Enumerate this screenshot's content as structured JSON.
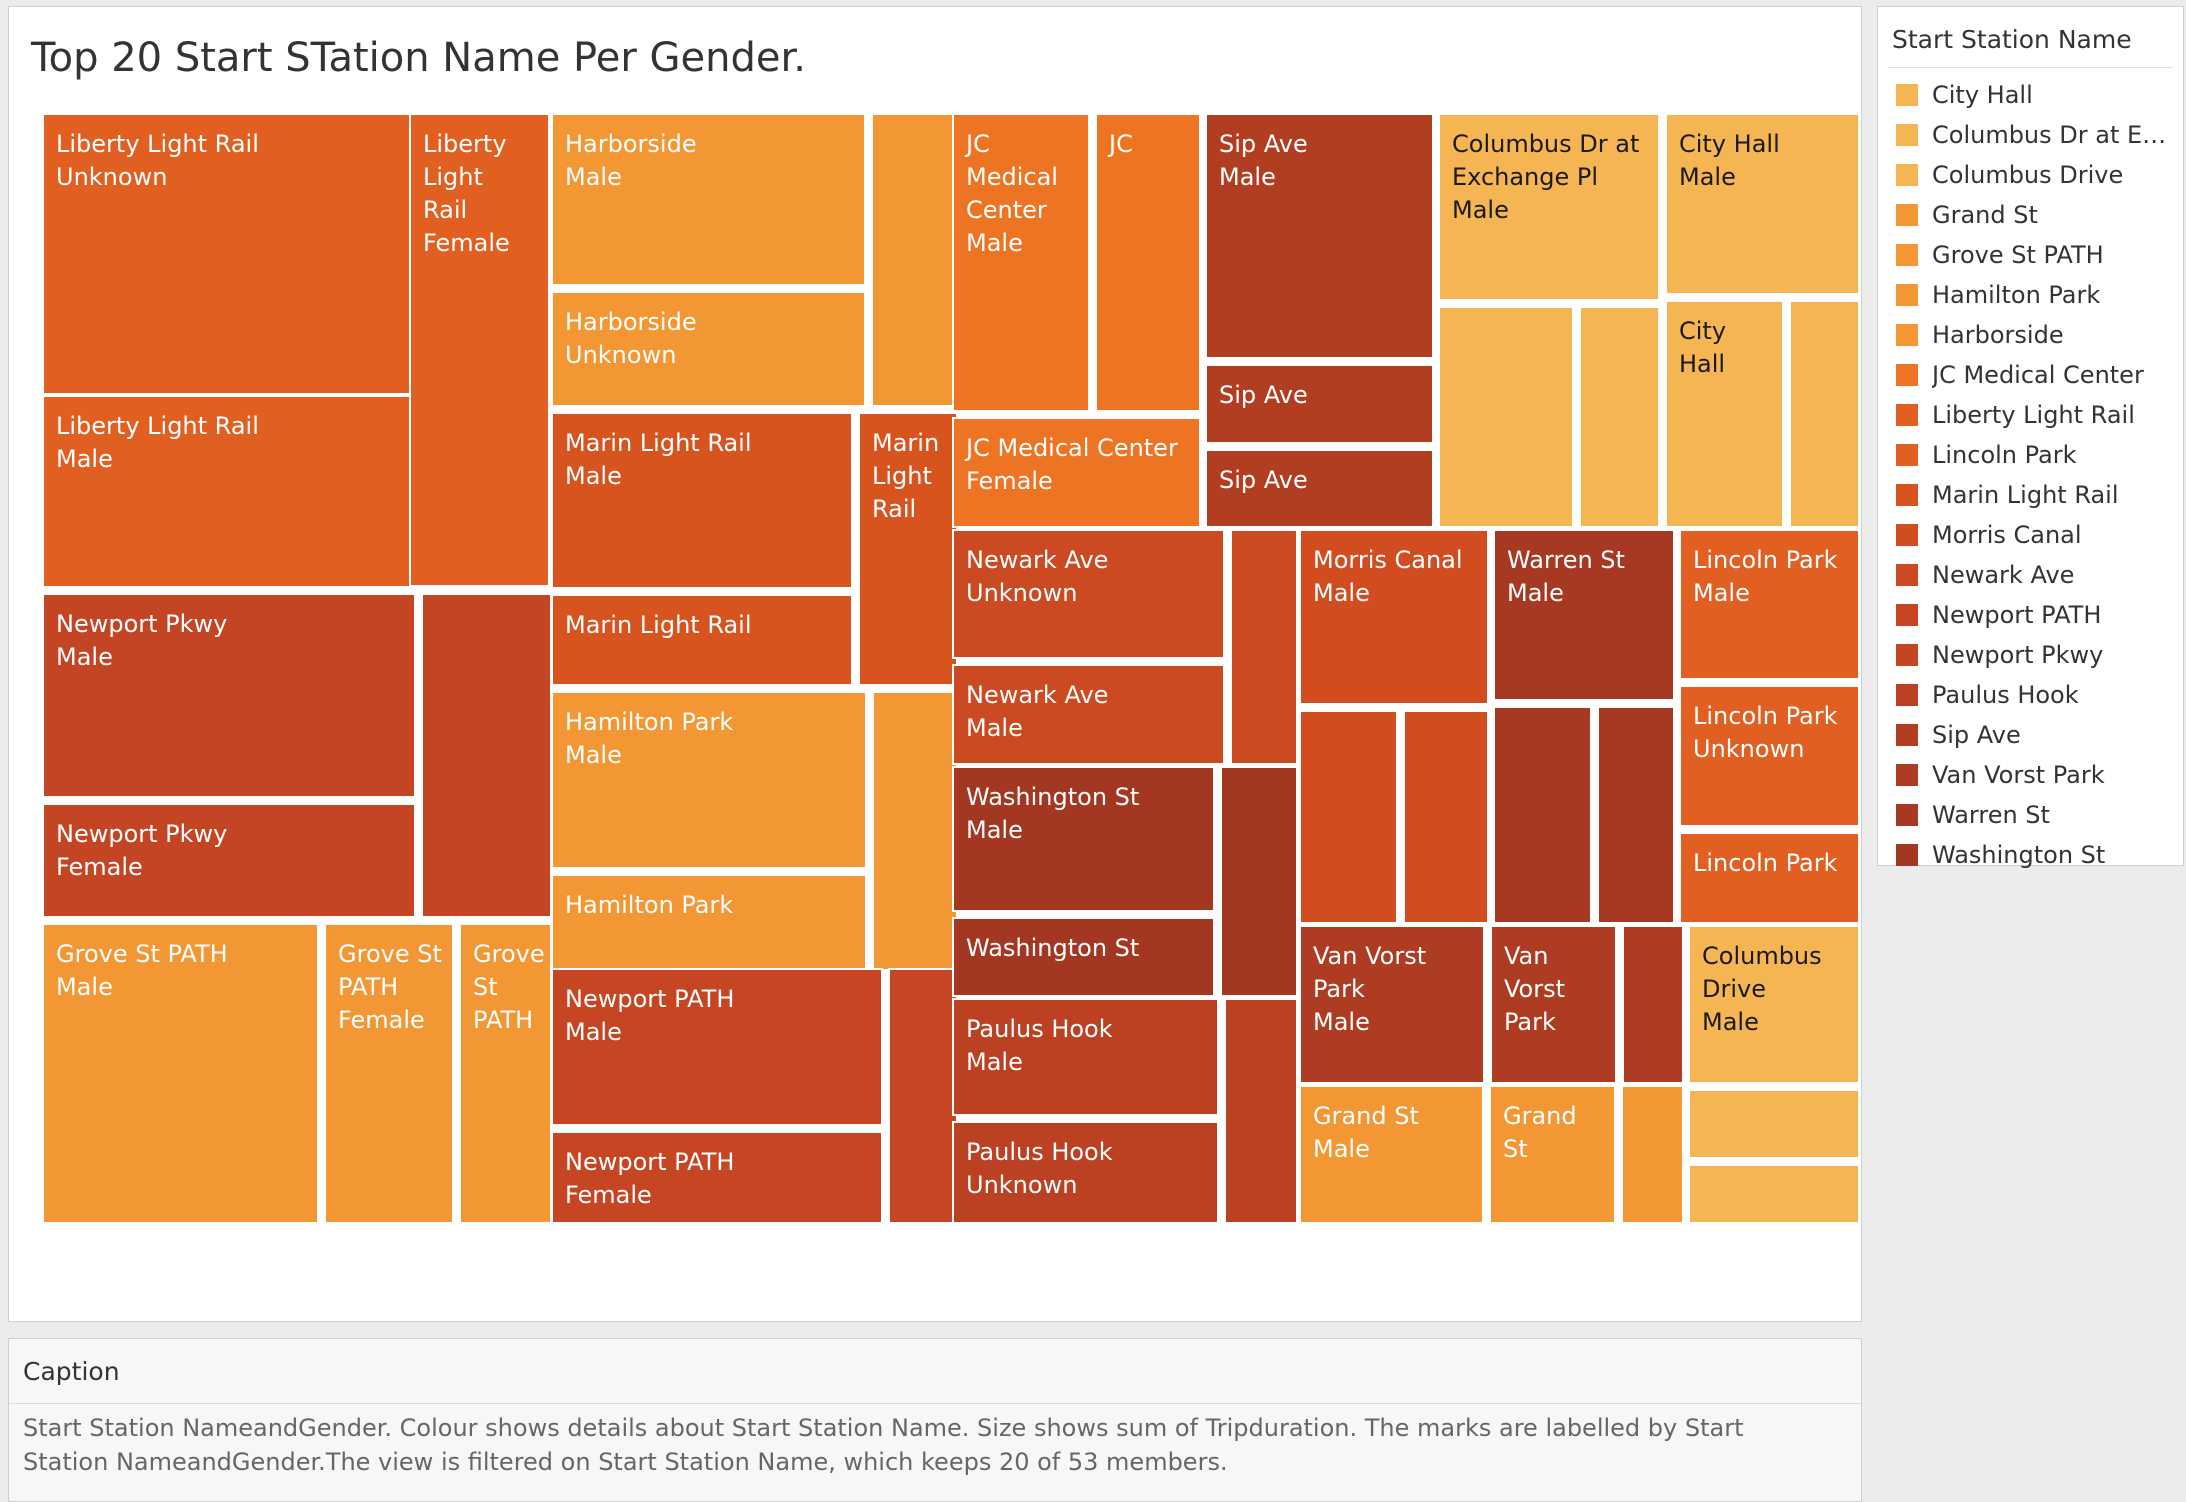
{
  "title": "Top 20 Start STation Name Per Gender.",
  "legend": {
    "title": "Start Station Name",
    "items": [
      {
        "label": "City Hall",
        "color": "#f6b553"
      },
      {
        "label": "Columbus Dr at Exch..",
        "color": "#f6b553"
      },
      {
        "label": "Columbus Drive",
        "color": "#f6b553"
      },
      {
        "label": "Grand St",
        "color": "#f39634"
      },
      {
        "label": "Grove St PATH",
        "color": "#f39634"
      },
      {
        "label": "Hamilton Park",
        "color": "#f39634"
      },
      {
        "label": "Harborside",
        "color": "#f39634"
      },
      {
        "label": "JC Medical Center",
        "color": "#ed7422"
      },
      {
        "label": "Liberty Light Rail",
        "color": "#e15f20"
      },
      {
        "label": "Lincoln Park",
        "color": "#e15f20"
      },
      {
        "label": "Marin Light Rail",
        "color": "#d7541f"
      },
      {
        "label": "Morris Canal",
        "color": "#d14d20"
      },
      {
        "label": "Newark Ave",
        "color": "#cb4a21"
      },
      {
        "label": "Newport PATH",
        "color": "#c64522"
      },
      {
        "label": "Newport Pkwy",
        "color": "#c44523"
      },
      {
        "label": "Paulus Hook",
        "color": "#bb4122"
      },
      {
        "label": "Sip Ave",
        "color": "#b23e22"
      },
      {
        "label": "Van Vorst Park",
        "color": "#ad3c22"
      },
      {
        "label": "Warren St",
        "color": "#a73922"
      },
      {
        "label": "Washington St",
        "color": "#a33722"
      }
    ]
  },
  "caption": {
    "heading": "Caption",
    "text": "Start Station NameandGender. Colour shows details about Start Station Name. Size shows sum of Tripduration. The marks are labelled by Start Station NameandGender.The view is filtered on Start Station Name, which keeps 20 of 53 members."
  },
  "chart_data": {
    "type": "treemap",
    "size_measure": "Tripduration",
    "color_by": "Start Station Name",
    "label_by": "Start Station NameandGender",
    "filter": "Start Station Name, 20 of 53 members",
    "stations": [
      {
        "name": "Liberty Light Rail",
        "color": "#e15f20",
        "cells": [
          {
            "lines": [
              "Liberty Light Rail",
              "Unknown"
            ]
          },
          {
            "lines": [
              "Liberty Light Rail",
              "Male"
            ]
          },
          {
            "lines": [
              "Liberty",
              "Light",
              "Rail",
              "Female"
            ]
          }
        ]
      },
      {
        "name": "Newport Pkwy",
        "color": "#c44523",
        "cells": [
          {
            "lines": [
              "Newport Pkwy",
              "Male"
            ]
          },
          {
            "lines": [
              "Newport Pkwy",
              "Female"
            ]
          },
          {
            "lines": []
          }
        ]
      },
      {
        "name": "Grove St PATH",
        "color": "#f39634",
        "cells": [
          {
            "lines": [
              "Grove St PATH",
              "Male"
            ]
          },
          {
            "lines": [
              "Grove St",
              "PATH",
              "Female"
            ]
          },
          {
            "lines": [
              "Grove",
              "St",
              "PATH"
            ]
          }
        ]
      },
      {
        "name": "Harborside",
        "color": "#f39634",
        "cells": [
          {
            "lines": [
              "Harborside",
              "Male"
            ]
          },
          {
            "lines": [
              "Harborside",
              "Unknown"
            ]
          },
          {
            "lines": []
          }
        ]
      },
      {
        "name": "Marin Light Rail",
        "color": "#d7541f",
        "cells": [
          {
            "lines": [
              "Marin Light Rail",
              "Male"
            ]
          },
          {
            "lines": [
              "Marin Light Rail"
            ]
          },
          {
            "lines": [
              "Marin",
              "Light",
              "Rail"
            ]
          }
        ]
      },
      {
        "name": "Hamilton Park",
        "color": "#f39634",
        "cells": [
          {
            "lines": [
              "Hamilton Park",
              "Male"
            ]
          },
          {
            "lines": [
              "Hamilton Park"
            ]
          },
          {
            "lines": []
          }
        ]
      },
      {
        "name": "Newport PATH",
        "color": "#c64522",
        "cells": [
          {
            "lines": [
              "Newport PATH",
              "Male"
            ]
          },
          {
            "lines": [
              "Newport PATH",
              "Female"
            ]
          },
          {
            "lines": []
          }
        ]
      },
      {
        "name": "JC Medical Center",
        "color": "#ed7422",
        "cells": [
          {
            "lines": [
              "JC",
              "Medical",
              "Center",
              "Male"
            ]
          },
          {
            "lines": [
              "JC"
            ]
          },
          {
            "lines": [
              "JC Medical Center",
              "Female"
            ]
          }
        ]
      },
      {
        "name": "Sip Ave",
        "color": "#b23e22",
        "cells": [
          {
            "lines": [
              "Sip Ave",
              "Male"
            ]
          },
          {
            "lines": [
              "Sip Ave"
            ]
          },
          {
            "lines": [
              "Sip Ave"
            ]
          }
        ]
      },
      {
        "name": "Columbus Dr at Exchange Pl",
        "color": "#f6b553",
        "cells": [
          {
            "lines": [
              "Columbus Dr at",
              "Exchange Pl",
              "Male"
            ]
          },
          {
            "lines": []
          },
          {
            "lines": []
          }
        ]
      },
      {
        "name": "City Hall",
        "color": "#f6b553",
        "cells": [
          {
            "lines": [
              "City Hall",
              "Male"
            ]
          },
          {
            "lines": [
              "City",
              "Hall"
            ]
          },
          {
            "lines": []
          }
        ]
      },
      {
        "name": "Newark Ave",
        "color": "#cb4a21",
        "cells": [
          {
            "lines": [
              "Newark Ave",
              "Unknown"
            ]
          },
          {
            "lines": [
              "Newark Ave",
              "Male"
            ]
          },
          {
            "lines": []
          }
        ]
      },
      {
        "name": "Washington St",
        "color": "#a33722",
        "cells": [
          {
            "lines": [
              "Washington St",
              "Male"
            ]
          },
          {
            "lines": [
              "Washington St"
            ]
          },
          {
            "lines": []
          }
        ]
      },
      {
        "name": "Paulus Hook",
        "color": "#bb4122",
        "cells": [
          {
            "lines": [
              "Paulus Hook",
              "Male"
            ]
          },
          {
            "lines": [
              "Paulus Hook",
              "Unknown"
            ]
          },
          {
            "lines": []
          }
        ]
      },
      {
        "name": "Morris Canal",
        "color": "#d14d20",
        "cells": [
          {
            "lines": [
              "Morris Canal",
              "Male"
            ]
          },
          {
            "lines": []
          },
          {
            "lines": []
          }
        ]
      },
      {
        "name": "Warren St",
        "color": "#a73922",
        "cells": [
          {
            "lines": [
              "Warren St",
              "Male"
            ]
          },
          {
            "lines": []
          },
          {
            "lines": []
          }
        ]
      },
      {
        "name": "Lincoln Park",
        "color": "#e15f20",
        "cells": [
          {
            "lines": [
              "Lincoln Park",
              "Male"
            ]
          },
          {
            "lines": [
              "Lincoln Park",
              "Unknown"
            ]
          },
          {
            "lines": [
              "Lincoln Park"
            ]
          }
        ]
      },
      {
        "name": "Van Vorst Park",
        "color": "#ad3c22",
        "cells": [
          {
            "lines": [
              "Van Vorst",
              "Park",
              "Male"
            ]
          },
          {
            "lines": [
              "Van",
              "Vorst",
              "Park"
            ]
          },
          {
            "lines": []
          }
        ]
      },
      {
        "name": "Columbus Drive",
        "color": "#f6b553",
        "cells": [
          {
            "lines": [
              "Columbus",
              "Drive",
              "Male"
            ]
          },
          {
            "lines": []
          },
          {
            "lines": []
          }
        ]
      },
      {
        "name": "Grand St",
        "color": "#f39634",
        "cells": [
          {
            "lines": [
              "Grand St",
              "Male"
            ]
          },
          {
            "lines": [
              "Grand",
              "St"
            ]
          },
          {
            "lines": []
          }
        ]
      }
    ]
  }
}
